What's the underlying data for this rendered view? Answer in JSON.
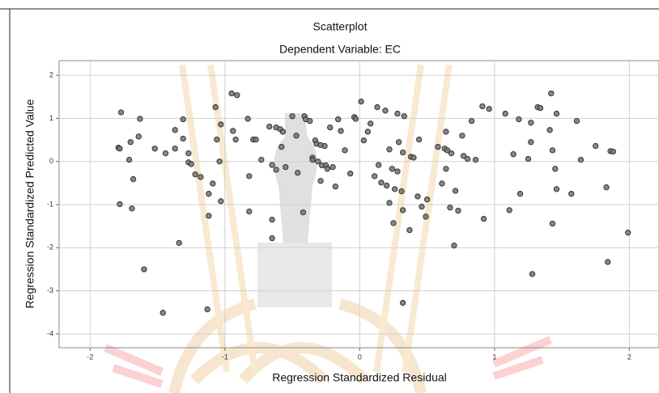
{
  "chart_data": {
    "type": "scatter",
    "title": "Scatterplot",
    "subtitle": "Dependent Variable: EC",
    "x_label": "Regression Standardized Residual",
    "y_label": "Regression Standardized Predicted Value",
    "color": "#7a7a7a",
    "grid": true,
    "xlim": [
      -2.23,
      2.22
    ],
    "ylim": [
      -4.32,
      2.34
    ],
    "xticks": [
      -2,
      -1,
      0,
      1,
      2
    ],
    "yticks": [
      -4,
      -3,
      -2,
      -1,
      0,
      1,
      2
    ],
    "x": [
      -1.77,
      -1.79,
      -1.78,
      -1.63,
      -1.64,
      -1.7,
      -1.71,
      -1.68,
      -1.78,
      -1.69,
      -1.6,
      -1.46,
      -1.52,
      -1.44,
      -1.37,
      -1.37,
      -1.27,
      -1.22,
      -1.18,
      -1.34,
      -1.31,
      -1.31,
      -1.27,
      -1.25,
      -1.13,
      -1.12,
      -1.12,
      -1.09,
      -1.07,
      -1.04,
      -1.06,
      -1.03,
      -1.03,
      -0.95,
      -0.91,
      -0.94,
      -0.92,
      -0.82,
      -0.82,
      -0.83,
      -0.79,
      -0.77,
      -0.73,
      -0.67,
      -0.65,
      -0.65,
      -0.65,
      -0.62,
      -0.62,
      -0.59,
      -0.58,
      -0.55,
      -0.57,
      -0.5,
      -0.47,
      -0.46,
      -0.42,
      -0.41,
      -0.4,
      -0.37,
      -0.35,
      -0.33,
      -0.32,
      -0.29,
      -0.35,
      -0.31,
      -0.28,
      -0.25,
      -0.24,
      -0.29,
      -0.26,
      -0.22,
      -0.2,
      -0.18,
      -0.16,
      -0.14,
      -0.11,
      -0.07,
      -0.04,
      -0.03,
      0.01,
      0.03,
      0.06,
      0.08,
      0.11,
      0.13,
      0.14,
      0.16,
      0.19,
      0.2,
      0.22,
      0.22,
      0.24,
      0.25,
      0.26,
      0.28,
      0.28,
      0.29,
      0.32,
      0.33,
      0.31,
      0.32,
      0.32,
      0.37,
      0.38,
      0.4,
      0.43,
      0.44,
      0.46,
      0.49,
      0.5,
      0.58,
      0.61,
      0.63,
      0.64,
      0.64,
      0.65,
      0.68,
      0.7,
      0.67,
      0.71,
      0.73,
      0.76,
      0.77,
      0.8,
      0.83,
      0.86,
      0.91,
      0.92,
      0.96,
      1.08,
      1.11,
      1.14,
      1.19,
      1.18,
      1.25,
      1.27,
      1.27,
      1.28,
      1.32,
      1.34,
      1.41,
      1.42,
      1.43,
      1.43,
      1.45,
      1.46,
      1.46,
      1.57,
      1.61,
      1.64,
      1.75,
      1.83,
      1.84,
      1.86,
      1.88,
      1.99
    ],
    "values": [
      1.14,
      0.32,
      0.3,
      0.99,
      0.58,
      0.45,
      0.04,
      -0.41,
      -0.99,
      -1.09,
      -2.5,
      -3.51,
      0.3,
      0.19,
      0.73,
      0.3,
      0.19,
      -0.3,
      -0.36,
      -1.89,
      0.98,
      0.53,
      -0.02,
      -0.06,
      -3.43,
      -1.26,
      -0.75,
      -0.51,
      1.26,
      0.0,
      0.51,
      0.86,
      -0.92,
      1.58,
      1.54,
      0.71,
      0.51,
      -0.34,
      -1.16,
      0.99,
      0.51,
      0.51,
      0.04,
      0.81,
      -1.35,
      -1.78,
      -0.08,
      -0.19,
      0.79,
      0.75,
      0.34,
      -0.13,
      0.69,
      1.05,
      0.6,
      -0.26,
      -1.18,
      1.05,
      0.98,
      0.94,
      0.09,
      0.49,
      0.41,
      0.38,
      0.04,
      0.0,
      -0.09,
      -0.09,
      -0.17,
      -0.45,
      0.36,
      0.79,
      -0.13,
      -0.58,
      0.98,
      0.71,
      0.26,
      -0.28,
      1.03,
      0.99,
      1.39,
      0.49,
      0.69,
      0.88,
      -0.34,
      1.26,
      -0.08,
      -0.49,
      1.18,
      -0.56,
      0.28,
      -0.96,
      -0.17,
      -1.43,
      -0.64,
      1.11,
      -0.23,
      0.45,
      0.21,
      1.05,
      -0.69,
      -3.28,
      -1.13,
      -1.59,
      0.11,
      0.09,
      -0.81,
      0.51,
      -1.05,
      -1.28,
      -0.88,
      0.34,
      -0.51,
      0.3,
      0.69,
      -0.17,
      0.26,
      0.19,
      -1.95,
      -1.07,
      -0.68,
      -1.14,
      0.6,
      0.13,
      0.06,
      0.94,
      0.04,
      1.28,
      -1.33,
      1.22,
      1.11,
      -1.13,
      0.17,
      -0.75,
      0.98,
      0.06,
      0.9,
      0.45,
      -2.61,
      1.26,
      1.24,
      0.73,
      1.58,
      0.26,
      -1.44,
      -0.17,
      -0.64,
      1.11,
      -0.75,
      0.94,
      0.04,
      0.36,
      -0.6,
      -2.33,
      0.24,
      0.23,
      -1.65
    ]
  }
}
